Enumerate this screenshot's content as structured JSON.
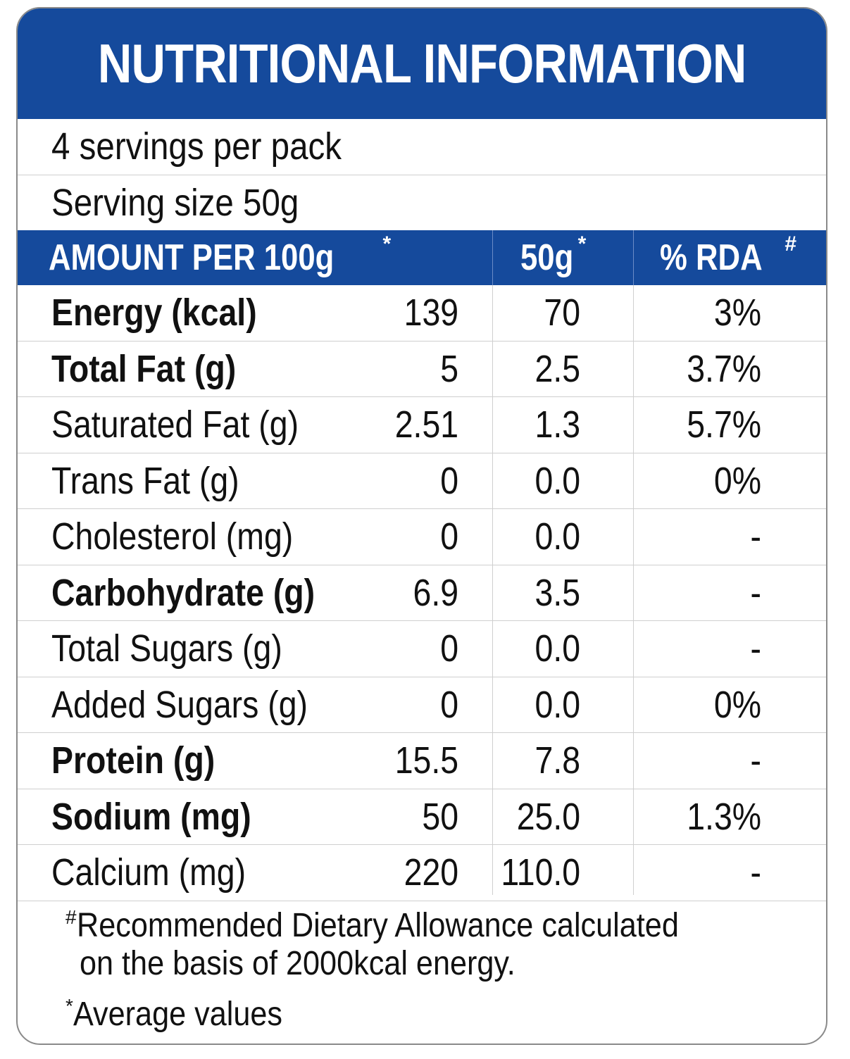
{
  "title": "NUTRITIONAL INFORMATION",
  "servings_per_pack": "4 servings per pack",
  "serving_size": "Serving size 50g",
  "header": {
    "col1": "AMOUNT PER 100g",
    "col1_mark": "*",
    "col2": "50g",
    "col2_mark": "*",
    "col3": "% RDA",
    "col3_mark": "#"
  },
  "rows": [
    {
      "name": "Energy (kcal)",
      "bold": true,
      "per100": "139",
      "per50": "70",
      "rda": "3%"
    },
    {
      "name": "Total Fat (g)",
      "bold": true,
      "per100": "5",
      "per50": "2.5",
      "rda": "3.7%"
    },
    {
      "name": "Saturated Fat (g)",
      "bold": false,
      "per100": "2.51",
      "per50": "1.3",
      "rda": "5.7%"
    },
    {
      "name": "Trans Fat (g)",
      "bold": false,
      "per100": "0",
      "per50": "0.0",
      "rda": "0%"
    },
    {
      "name": "Cholesterol (mg)",
      "bold": false,
      "per100": "0",
      "per50": "0.0",
      "rda": "-"
    },
    {
      "name": "Carbohydrate (g)",
      "bold": true,
      "per100": "6.9",
      "per50": "3.5",
      "rda": "-"
    },
    {
      "name": "Total Sugars (g)",
      "bold": false,
      "per100": "0",
      "per50": "0.0",
      "rda": "-"
    },
    {
      "name": "Added Sugars (g)",
      "bold": false,
      "per100": "0",
      "per50": "0.0",
      "rda": "0%"
    },
    {
      "name": "Protein (g)",
      "bold": true,
      "per100": "15.5",
      "per50": "7.8",
      "rda": "-"
    },
    {
      "name": "Sodium (mg)",
      "bold": true,
      "per100": "50",
      "per50": "25.0",
      "rda": "1.3%"
    },
    {
      "name": "Calcium (mg)",
      "bold": false,
      "per100": "220",
      "per50": "110.0",
      "rda": "-"
    }
  ],
  "footnotes": {
    "rda_mark": "#",
    "rda_line1": "Recommended Dietary Allowance calculated",
    "rda_line2": "on the basis of 2000kcal energy.",
    "avg_mark": "*",
    "avg_text": "Average values"
  },
  "colors": {
    "header_blue": "#154a9c",
    "text": "#111111",
    "rule": "#cfcfcf"
  }
}
